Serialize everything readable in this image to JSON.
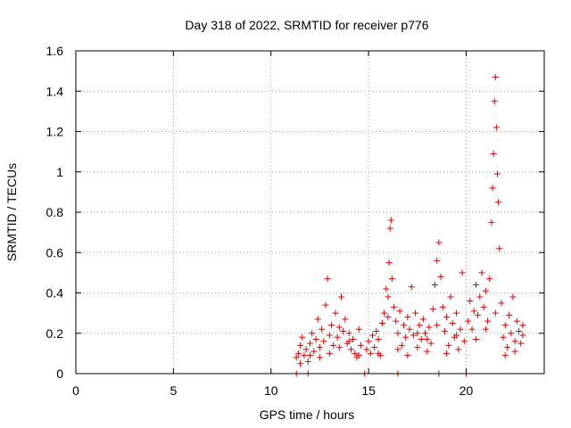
{
  "chart_data": {
    "type": "scatter",
    "title": "Day 318 of 2022, SRMTID for receiver p776",
    "xlabel": "GPS time / hours",
    "ylabel": "SRMTID / TECUs",
    "xlim": [
      0,
      24
    ],
    "ylim": [
      0,
      1.6
    ],
    "xticks": [
      0,
      5,
      10,
      15,
      20
    ],
    "xtick_labels": [
      "0",
      "5",
      "10",
      "15",
      "20"
    ],
    "yticks": [
      0,
      0.2,
      0.4,
      0.6,
      0.8,
      1.0,
      1.2,
      1.4,
      1.6
    ],
    "ytick_labels": [
      "0",
      "0.2",
      "0.4",
      "0.6",
      "0.8",
      "1",
      "1.2",
      "1.4",
      "1.6"
    ],
    "grid": true,
    "marker": "+",
    "color": "#e00000",
    "series": [
      {
        "name": "SRMTID",
        "points": [
          [
            11.3,
            0.0
          ],
          [
            11.9,
            0.0
          ],
          [
            14.8,
            0.0
          ],
          [
            16.5,
            0.0
          ],
          [
            18.6,
            0.0
          ],
          [
            20.0,
            0.0
          ],
          [
            11.3,
            0.08
          ],
          [
            11.4,
            0.1
          ],
          [
            11.5,
            0.14
          ],
          [
            11.6,
            0.18
          ],
          [
            11.7,
            0.09
          ],
          [
            11.8,
            0.12
          ],
          [
            11.9,
            0.06
          ],
          [
            12.0,
            0.15
          ],
          [
            12.1,
            0.2
          ],
          [
            12.2,
            0.11
          ],
          [
            12.3,
            0.17
          ],
          [
            12.4,
            0.27
          ],
          [
            12.5,
            0.13
          ],
          [
            12.6,
            0.22
          ],
          [
            12.7,
            0.16
          ],
          [
            12.8,
            0.34
          ],
          [
            12.9,
            0.47
          ],
          [
            13.0,
            0.19
          ],
          [
            13.1,
            0.24
          ],
          [
            13.2,
            0.14
          ],
          [
            13.3,
            0.3
          ],
          [
            13.4,
            0.18
          ],
          [
            13.5,
            0.23
          ],
          [
            13.6,
            0.38
          ],
          [
            13.7,
            0.21
          ],
          [
            13.8,
            0.27
          ],
          [
            13.9,
            0.15
          ],
          [
            14.0,
            0.2
          ],
          [
            14.1,
            0.12
          ],
          [
            14.2,
            0.17
          ],
          [
            14.3,
            0.1
          ],
          [
            14.4,
            0.08
          ],
          [
            14.5,
            0.22
          ],
          [
            14.6,
            0.14
          ],
          [
            11.5,
            0.05
          ],
          [
            12.0,
            0.09
          ],
          [
            12.5,
            0.08
          ],
          [
            13.0,
            0.1
          ],
          [
            13.5,
            0.13
          ],
          [
            14.0,
            0.16
          ],
          [
            14.5,
            0.09
          ],
          [
            14.9,
            0.12
          ],
          [
            15.0,
            0.16
          ],
          [
            15.1,
            0.1
          ],
          [
            15.2,
            0.19
          ],
          [
            15.3,
            0.13
          ],
          [
            15.4,
            0.21
          ],
          [
            15.5,
            0.17
          ],
          [
            15.6,
            0.09
          ],
          [
            15.7,
            0.25
          ],
          [
            15.8,
            0.3
          ],
          [
            15.9,
            0.42
          ],
          [
            16.0,
            0.38
          ],
          [
            16.05,
            0.55
          ],
          [
            16.1,
            0.72
          ],
          [
            16.15,
            0.76
          ],
          [
            16.2,
            0.47
          ],
          [
            16.3,
            0.33
          ],
          [
            16.4,
            0.26
          ],
          [
            16.5,
            0.2
          ],
          [
            16.6,
            0.31
          ],
          [
            16.7,
            0.14
          ],
          [
            16.8,
            0.24
          ],
          [
            16.9,
            0.18
          ],
          [
            17.0,
            0.28
          ],
          [
            17.1,
            0.22
          ],
          [
            17.2,
            0.43
          ],
          [
            17.3,
            0.19
          ],
          [
            17.4,
            0.3
          ],
          [
            17.5,
            0.13
          ],
          [
            17.6,
            0.24
          ],
          [
            17.7,
            0.17
          ],
          [
            17.8,
            0.27
          ],
          [
            17.9,
            0.2
          ],
          [
            18.0,
            0.11
          ],
          [
            18.1,
            0.23
          ],
          [
            18.2,
            0.15
          ],
          [
            18.3,
            0.32
          ],
          [
            18.4,
            0.44
          ],
          [
            18.5,
            0.56
          ],
          [
            18.6,
            0.65
          ],
          [
            18.7,
            0.48
          ],
          [
            18.8,
            0.33
          ],
          [
            18.9,
            0.21
          ],
          [
            19.0,
            0.28
          ],
          [
            19.1,
            0.14
          ],
          [
            19.2,
            0.38
          ],
          [
            19.3,
            0.25
          ],
          [
            19.4,
            0.18
          ],
          [
            19.5,
            0.3
          ],
          [
            19.6,
            0.12
          ],
          [
            19.7,
            0.22
          ],
          [
            19.8,
            0.5
          ],
          [
            19.9,
            0.16
          ],
          [
            15.5,
            0.1
          ],
          [
            16.0,
            0.28
          ],
          [
            16.5,
            0.12
          ],
          [
            17.0,
            0.09
          ],
          [
            17.5,
            0.2
          ],
          [
            18.0,
            0.17
          ],
          [
            18.5,
            0.24
          ],
          [
            19.0,
            0.1
          ],
          [
            19.5,
            0.19
          ],
          [
            20.1,
            0.26
          ],
          [
            20.2,
            0.36
          ],
          [
            20.3,
            0.22
          ],
          [
            20.4,
            0.31
          ],
          [
            20.5,
            0.44
          ],
          [
            20.6,
            0.29
          ],
          [
            20.7,
            0.38
          ],
          [
            20.8,
            0.5
          ],
          [
            20.9,
            0.33
          ],
          [
            21.0,
            0.41
          ],
          [
            21.1,
            0.26
          ],
          [
            21.2,
            0.47
          ],
          [
            21.3,
            0.75
          ],
          [
            21.35,
            0.92
          ],
          [
            21.4,
            1.09
          ],
          [
            21.45,
            1.35
          ],
          [
            21.5,
            1.47
          ],
          [
            21.55,
            1.22
          ],
          [
            21.6,
            0.99
          ],
          [
            21.65,
            0.85
          ],
          [
            21.7,
            0.62
          ],
          [
            21.8,
            0.35
          ],
          [
            21.9,
            0.18
          ],
          [
            22.0,
            0.24
          ],
          [
            22.1,
            0.13
          ],
          [
            22.2,
            0.29
          ],
          [
            22.3,
            0.2
          ],
          [
            22.4,
            0.38
          ],
          [
            22.5,
            0.16
          ],
          [
            22.6,
            0.26
          ],
          [
            22.7,
            0.21
          ],
          [
            22.8,
            0.15
          ],
          [
            22.9,
            0.24
          ],
          [
            20.5,
            0.17
          ],
          [
            21.0,
            0.22
          ],
          [
            21.5,
            0.3
          ],
          [
            22.0,
            0.09
          ],
          [
            22.5,
            0.11
          ],
          [
            22.9,
            0.19
          ]
        ]
      }
    ]
  }
}
